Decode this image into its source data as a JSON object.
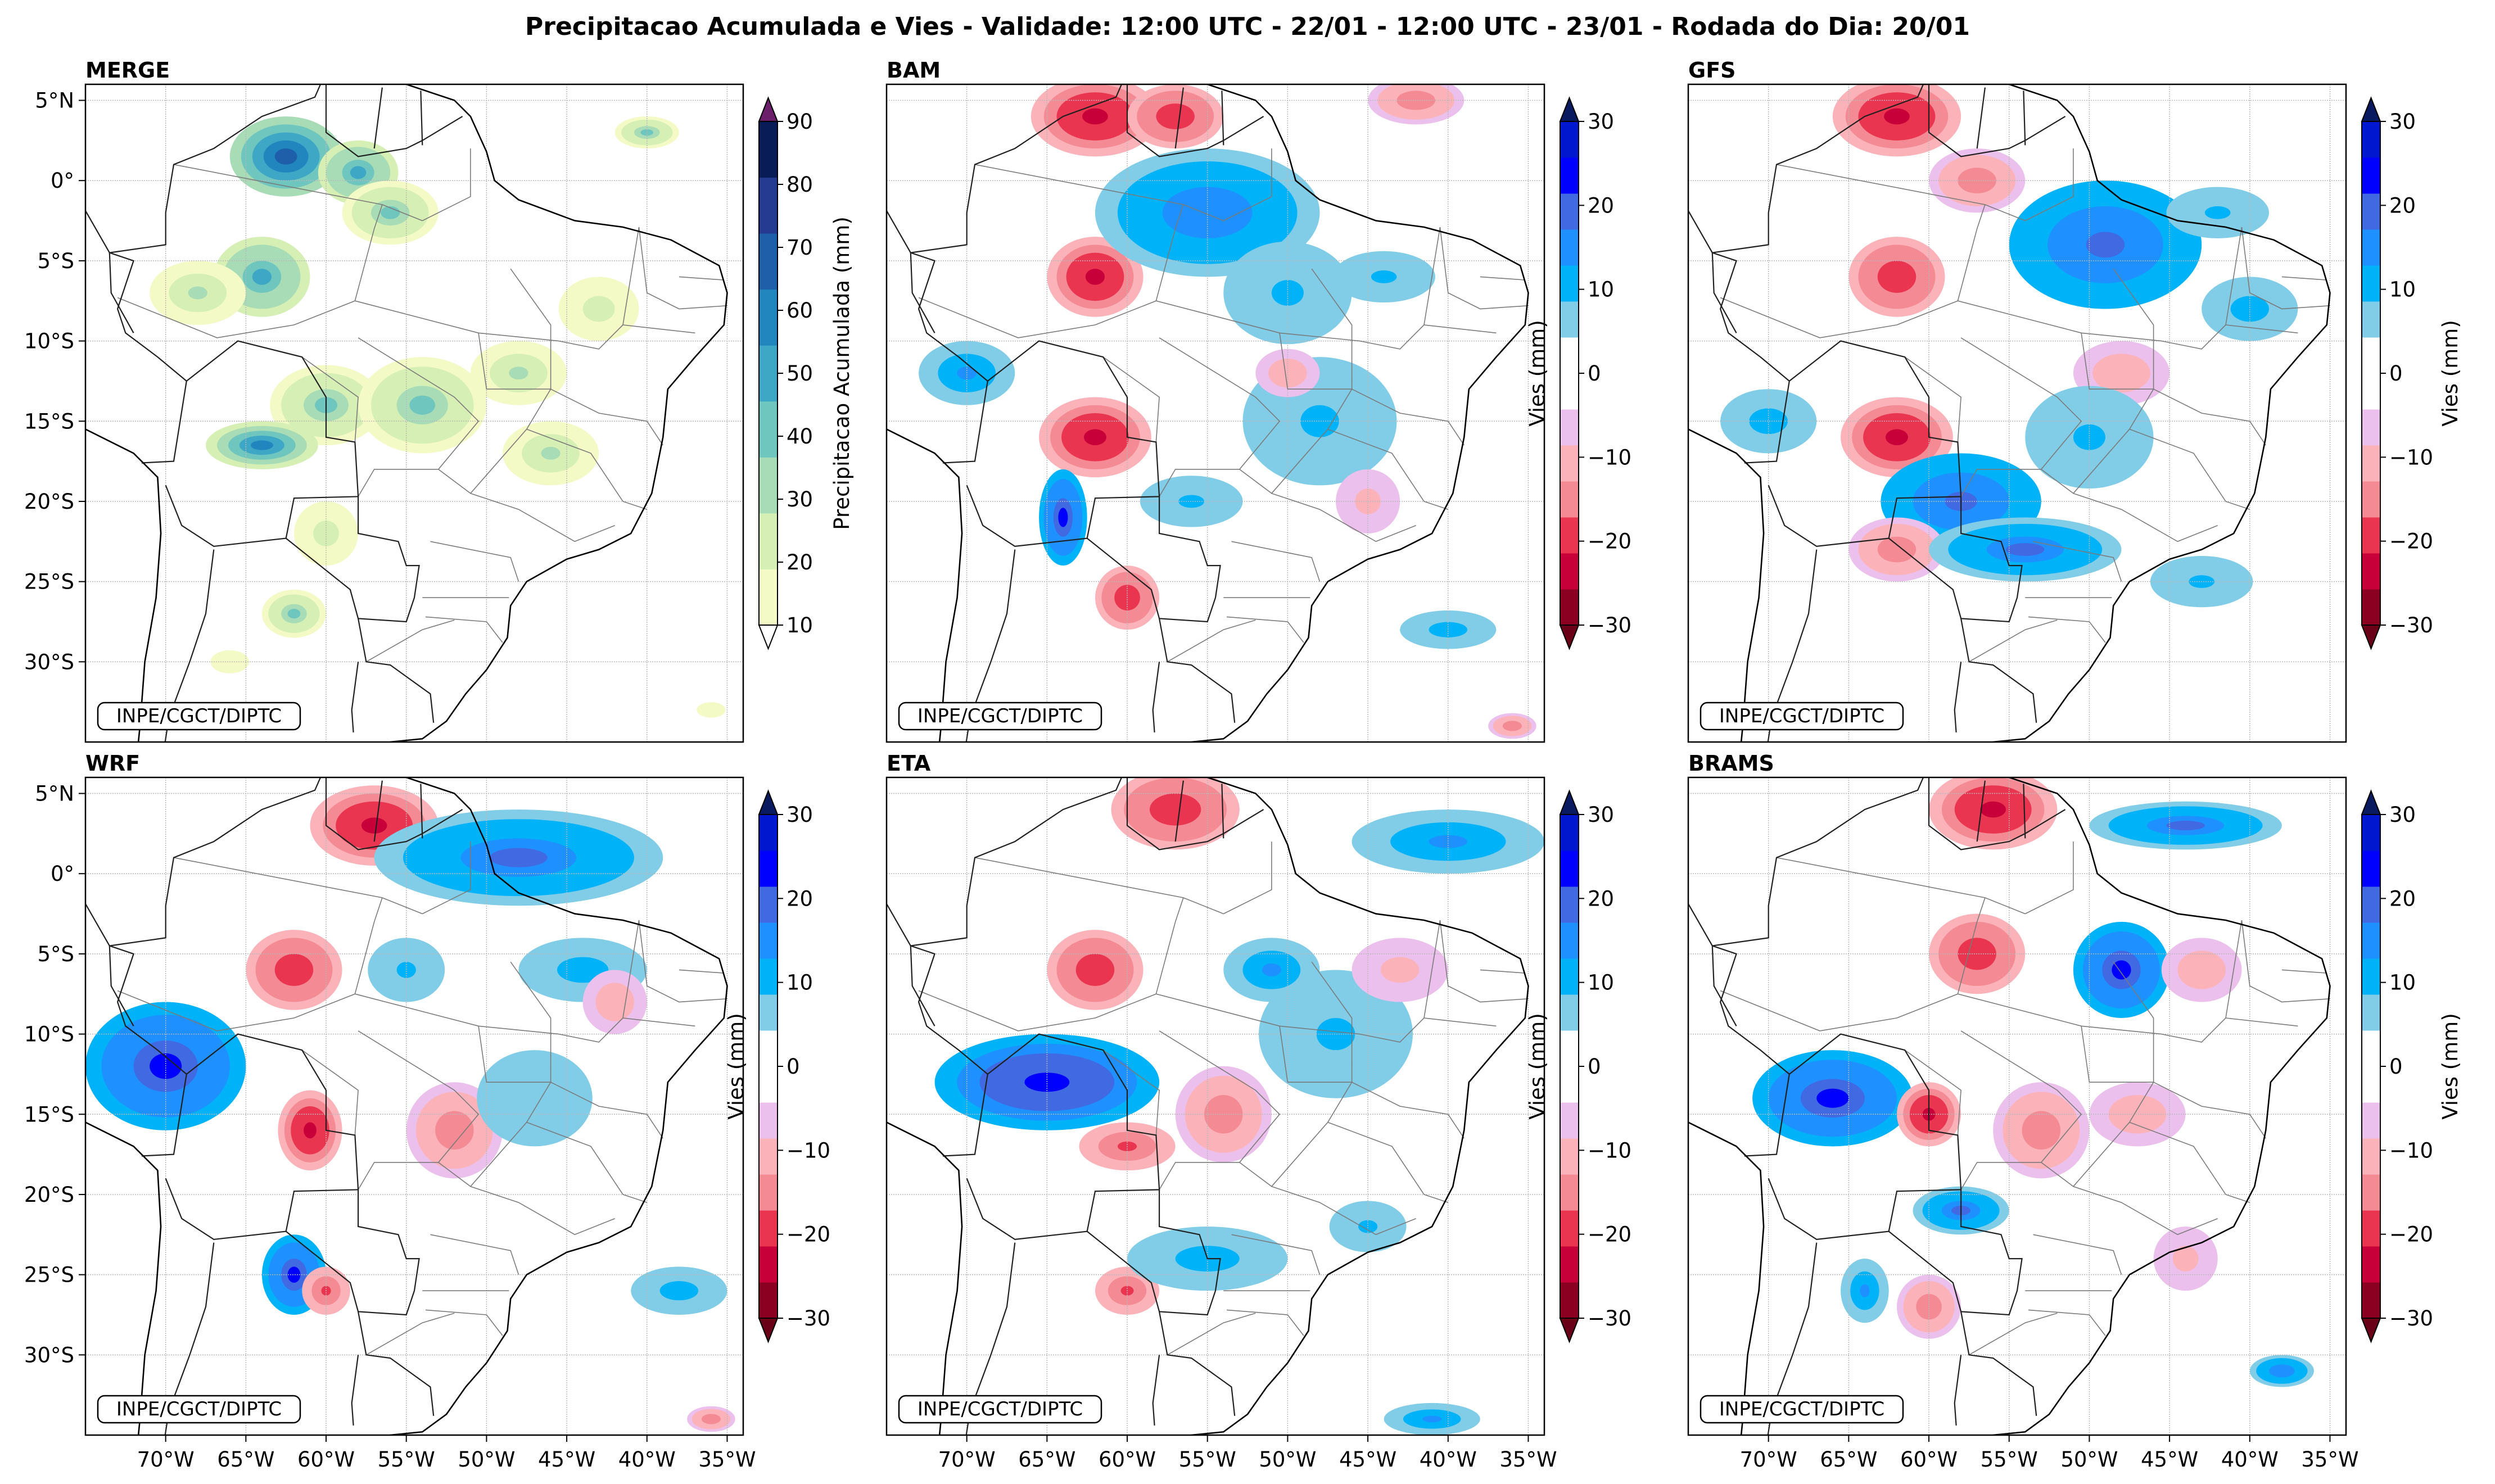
{
  "title": "Precipitacao Acumulada e Vies - Validade: 12:00 UTC - 22/01 - 12:00 UTC - 23/01 - Rodada do Dia: 20/01",
  "credit": "INPE/CGCT/DIPTC",
  "chart_data": {
    "type": "heatmap",
    "projection": "lat-lon map of Brazil / South America",
    "lon_range": [
      -75,
      -34
    ],
    "lat_range": [
      -35,
      6
    ],
    "x_ticks": [
      -70,
      -65,
      -60,
      -55,
      -50,
      -45,
      -40,
      -35
    ],
    "x_tick_labels": [
      "70°W",
      "65°W",
      "60°W",
      "55°W",
      "50°W",
      "45°W",
      "40°W",
      "35°W"
    ],
    "y_ticks": [
      5,
      0,
      -5,
      -10,
      -15,
      -20,
      -25,
      -30
    ],
    "y_tick_labels": [
      "5°N",
      "0°",
      "5°S",
      "10°S",
      "15°S",
      "20°S",
      "25°S",
      "30°S"
    ],
    "panels": [
      {
        "name": "MERGE",
        "kind": "precip",
        "colorbar_label": "Precipitacao Acumulada (mm)",
        "blobs": [
          [
            -62.5,
            1.5,
            3.5,
            2.5,
            70
          ],
          [
            -58,
            0.5,
            2.5,
            2,
            50
          ],
          [
            -56,
            -2,
            3,
            2,
            40
          ],
          [
            -64,
            -6,
            3,
            2.5,
            50
          ],
          [
            -68,
            -7,
            3,
            2,
            30
          ],
          [
            -60,
            -14,
            3.5,
            2.5,
            40
          ],
          [
            -54,
            -14,
            4,
            3,
            40
          ],
          [
            -48,
            -12,
            3,
            2,
            30
          ],
          [
            -64,
            -16.5,
            3.5,
            1.5,
            60
          ],
          [
            -46,
            -17,
            3,
            2,
            30
          ],
          [
            -62,
            -27,
            2,
            1.5,
            40
          ],
          [
            -60,
            -22,
            2,
            2,
            25
          ],
          [
            -40,
            3,
            2,
            1,
            40
          ],
          [
            -43,
            -8,
            2.5,
            2,
            25
          ],
          [
            -66,
            -30,
            2,
            1.2,
            15
          ],
          [
            -36,
            -33,
            1.5,
            0.8,
            15
          ]
        ]
      },
      {
        "name": "BAM",
        "kind": "bias",
        "colorbar_label": "Vies (mm)",
        "blobs": [
          [
            -62,
            4,
            4,
            2.5,
            -28
          ],
          [
            -57,
            4,
            3,
            2,
            -25
          ],
          [
            -42,
            5,
            3,
            1.5,
            -20
          ],
          [
            -62,
            -6,
            3,
            2.5,
            -28
          ],
          [
            -55,
            -2,
            7,
            4,
            18
          ],
          [
            -62,
            -16,
            3.5,
            2.5,
            -28
          ],
          [
            -60,
            -26,
            2,
            2,
            -25
          ],
          [
            -64,
            -21,
            1.5,
            3,
            25
          ],
          [
            -70,
            -12,
            3,
            2,
            15
          ],
          [
            -50,
            -7,
            5,
            4,
            10
          ],
          [
            -44,
            -6,
            4,
            2,
            10
          ],
          [
            -48,
            -15,
            6,
            5,
            10
          ],
          [
            -50,
            -12,
            2,
            1.5,
            -15
          ],
          [
            -56,
            -20,
            4,
            2,
            10
          ],
          [
            -45,
            -20,
            2,
            2,
            -12
          ],
          [
            -40,
            -28,
            3,
            1.2,
            12
          ],
          [
            -36,
            -34,
            1.5,
            0.8,
            -20
          ]
        ]
      },
      {
        "name": "GFS",
        "kind": "bias",
        "colorbar_label": "Vies (mm)",
        "blobs": [
          [
            -62,
            4,
            4,
            2.5,
            -28
          ],
          [
            -57,
            0,
            3,
            2,
            -20
          ],
          [
            -49,
            -4,
            6,
            4,
            22
          ],
          [
            -62,
            -6,
            3,
            2.5,
            -25
          ],
          [
            -62,
            -16,
            3.5,
            2.5,
            -28
          ],
          [
            -58,
            -20,
            5,
            3,
            22
          ],
          [
            -62,
            -23,
            3,
            2,
            -20
          ],
          [
            -54,
            -23,
            6,
            2,
            20
          ],
          [
            -48,
            -12,
            3,
            2,
            -15
          ],
          [
            -50,
            -16,
            5,
            4,
            10
          ],
          [
            -40,
            -8,
            3,
            2,
            12
          ],
          [
            -42,
            -2,
            4,
            2,
            10
          ],
          [
            -70,
            -15,
            3,
            2,
            12
          ],
          [
            -43,
            -25,
            4,
            2,
            10
          ]
        ]
      },
      {
        "name": "WRF",
        "kind": "bias",
        "colorbar_label": "Vies (mm)",
        "blobs": [
          [
            -57,
            3,
            4,
            2.5,
            -28
          ],
          [
            -48,
            1,
            9,
            3,
            20
          ],
          [
            -62,
            -6,
            3,
            2.5,
            -25
          ],
          [
            -70,
            -12,
            5,
            4,
            25
          ],
          [
            -61,
            -16,
            2,
            2.5,
            -28
          ],
          [
            -52,
            -16,
            3,
            3,
            -18
          ],
          [
            -55,
            -6,
            3,
            2.5,
            10
          ],
          [
            -44,
            -6,
            4,
            2,
            12
          ],
          [
            -47,
            -14,
            6,
            5,
            8
          ],
          [
            -62,
            -25,
            2,
            2.5,
            25
          ],
          [
            -60,
            -26,
            1.5,
            1.5,
            -22
          ],
          [
            -42,
            -8,
            2,
            2,
            -15
          ],
          [
            -38,
            -26,
            3,
            1.5,
            12
          ],
          [
            -36,
            -34,
            1.5,
            0.8,
            -20
          ]
        ]
      },
      {
        "name": "ETA",
        "kind": "bias",
        "colorbar_label": "Vies (mm)",
        "blobs": [
          [
            -57,
            4,
            4,
            2.5,
            -25
          ],
          [
            -40,
            2,
            6,
            2,
            15
          ],
          [
            -62,
            -6,
            3,
            2.5,
            -25
          ],
          [
            -65,
            -13,
            7,
            3,
            28
          ],
          [
            -60,
            -17,
            3,
            1.5,
            -22
          ],
          [
            -54,
            -15,
            3,
            3,
            -18
          ],
          [
            -47,
            -10,
            6,
            5,
            10
          ],
          [
            -51,
            -6,
            3,
            2,
            15
          ],
          [
            -43,
            -6,
            3,
            2,
            -12
          ],
          [
            -60,
            -26,
            2,
            1.5,
            -22
          ],
          [
            -55,
            -24,
            5,
            2,
            12
          ],
          [
            -45,
            -22,
            3,
            2,
            10
          ],
          [
            -41,
            -34,
            3,
            1,
            15
          ]
        ]
      },
      {
        "name": "BRAMS",
        "kind": "bias",
        "colorbar_label": "Vies (mm)",
        "blobs": [
          [
            -56,
            4,
            4,
            2.5,
            -28
          ],
          [
            -44,
            3,
            6,
            1.5,
            20
          ],
          [
            -57,
            -5,
            3,
            2.5,
            -25
          ],
          [
            -48,
            -6,
            3,
            3,
            25
          ],
          [
            -43,
            -6,
            2.5,
            2,
            -15
          ],
          [
            -66,
            -14,
            5,
            3,
            25
          ],
          [
            -60,
            -15,
            2,
            2,
            -28
          ],
          [
            -53,
            -16,
            3,
            3,
            -20
          ],
          [
            -47,
            -15,
            3,
            2,
            -15
          ],
          [
            -58,
            -21,
            3,
            1.5,
            20
          ],
          [
            -60,
            -27,
            2,
            2,
            -20
          ],
          [
            -64,
            -26,
            1.5,
            2,
            15
          ],
          [
            -44,
            -24,
            2,
            2,
            -12
          ],
          [
            -38,
            -31,
            2,
            1,
            18
          ]
        ]
      }
    ],
    "precip_colorbar": {
      "ticks": [
        10,
        20,
        30,
        40,
        50,
        60,
        70,
        80,
        90
      ],
      "colors": [
        "#f3fac5",
        "#d5efb4",
        "#a8dcb6",
        "#6fc6be",
        "#3ea7c6",
        "#2086bd",
        "#1f5ea8",
        "#253a91",
        "#081d58"
      ],
      "over_color": "#6b1e6a",
      "under_color": "#ffffff"
    },
    "bias_colorbar": {
      "ticks": [
        -30,
        -20,
        -10,
        0,
        10,
        20,
        30
      ],
      "colors": [
        "#8b0021",
        "#c8003a",
        "#ea3550",
        "#f48a94",
        "#fbb3b9",
        "#ecc0ec",
        "#ffffff",
        "#ffffff",
        "#81cde8",
        "#00b2f8",
        "#1e90ff",
        "#4169e1",
        "#0000ff",
        "#0017d0"
      ],
      "over_color": "#0a1a60",
      "under_color": "#6a0018"
    }
  }
}
